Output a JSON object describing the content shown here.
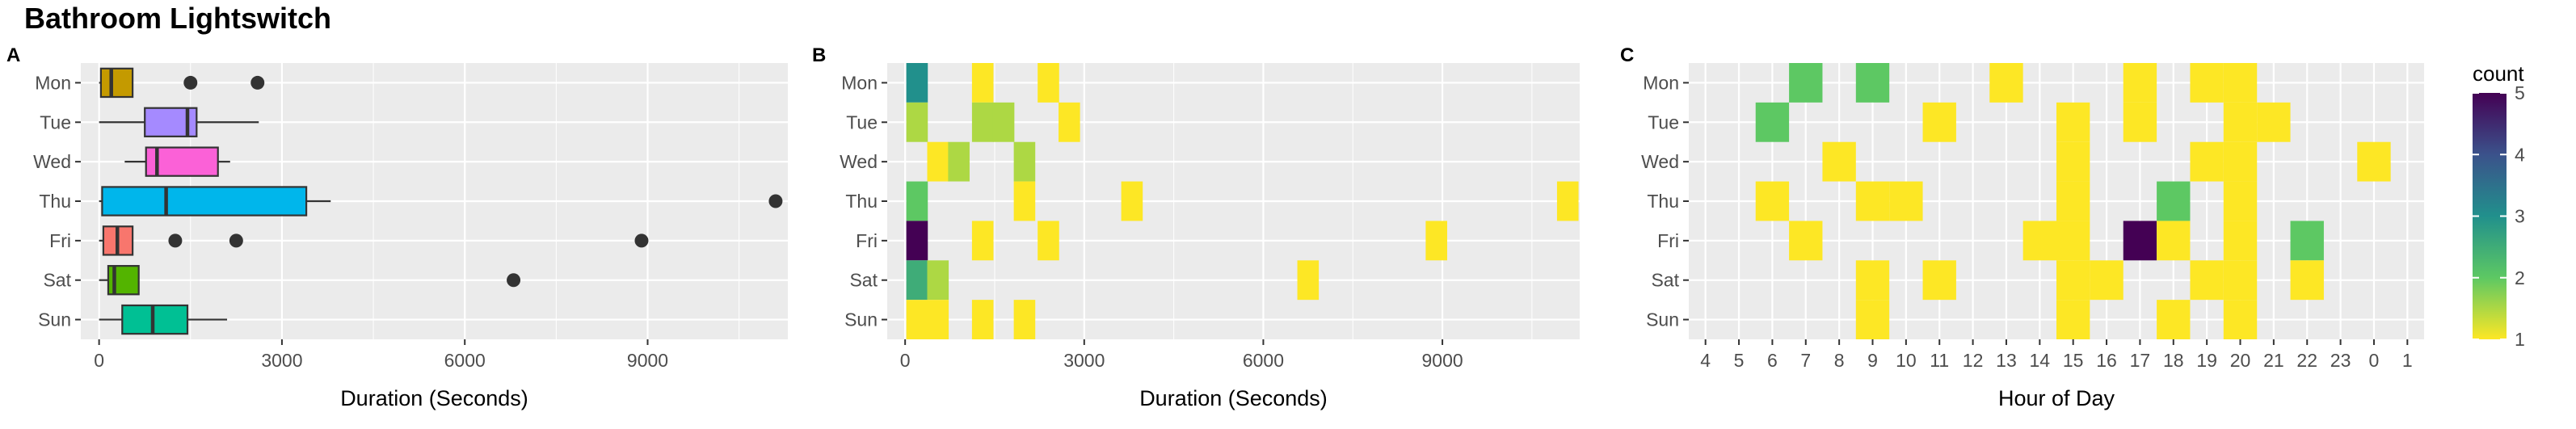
{
  "title": "Bathroom Lightswitch",
  "days": [
    "Mon",
    "Tue",
    "Wed",
    "Thu",
    "Fri",
    "Sat",
    "Sun"
  ],
  "chart_data": [
    {
      "panel": "A",
      "type": "box",
      "xlabel": "Duration (Seconds)",
      "ylabel": "",
      "xlim": [
        -300,
        11300
      ],
      "x_ticks": [
        0,
        3000,
        6000,
        9000
      ],
      "categories": [
        "Mon",
        "Tue",
        "Wed",
        "Thu",
        "Fri",
        "Sat",
        "Sun"
      ],
      "boxes": [
        {
          "day": "Mon",
          "min": 0,
          "q1": 30,
          "median": 200,
          "q3": 550,
          "max": 560,
          "outliers": [
            1500,
            2600
          ],
          "color": "#C49A00"
        },
        {
          "day": "Tue",
          "min": 0,
          "q1": 750,
          "median": 1450,
          "q3": 1600,
          "max": 2620,
          "outliers": [],
          "color": "#A58AFF"
        },
        {
          "day": "Wed",
          "min": 420,
          "q1": 770,
          "median": 950,
          "q3": 1950,
          "max": 2150,
          "outliers": [],
          "color": "#FB61D7"
        },
        {
          "day": "Thu",
          "min": 0,
          "q1": 50,
          "median": 1100,
          "q3": 3400,
          "max": 3800,
          "outliers": [
            11100
          ],
          "color": "#00B6EB"
        },
        {
          "day": "Fri",
          "min": 0,
          "q1": 70,
          "median": 300,
          "q3": 550,
          "max": 560,
          "outliers": [
            1250,
            2250,
            8900
          ],
          "color": "#F8766D"
        },
        {
          "day": "Sat",
          "min": 0,
          "q1": 150,
          "median": 250,
          "q3": 650,
          "max": 660,
          "outliers": [
            6800
          ],
          "color": "#53B400"
        },
        {
          "day": "Sun",
          "min": 0,
          "q1": 380,
          "median": 880,
          "q3": 1450,
          "max": 2100,
          "outliers": [],
          "color": "#00C094"
        }
      ]
    },
    {
      "panel": "B",
      "type": "heatmap",
      "xlabel": "Duration (Seconds)",
      "ylabel": "",
      "xlim": [
        -300,
        11300
      ],
      "x_ticks": [
        0,
        3000,
        6000,
        9000
      ],
      "bin_width": 360,
      "categories": [
        "Mon",
        "Tue",
        "Wed",
        "Thu",
        "Fri",
        "Sat",
        "Sun"
      ],
      "cells": [
        {
          "day": "Mon",
          "x": 200,
          "count": 3
        },
        {
          "day": "Mon",
          "x": 1300,
          "count": 1
        },
        {
          "day": "Mon",
          "x": 2400,
          "count": 1
        },
        {
          "day": "Tue",
          "x": 200,
          "count": 1.5
        },
        {
          "day": "Tue",
          "x": 1300,
          "count": 1.5
        },
        {
          "day": "Tue",
          "x": 1650,
          "count": 1.5
        },
        {
          "day": "Tue",
          "x": 2750,
          "count": 1
        },
        {
          "day": "Wed",
          "x": 550,
          "count": 1
        },
        {
          "day": "Wed",
          "x": 900,
          "count": 1.5
        },
        {
          "day": "Wed",
          "x": 2000,
          "count": 1.5
        },
        {
          "day": "Thu",
          "x": 200,
          "count": 2
        },
        {
          "day": "Thu",
          "x": 2000,
          "count": 1
        },
        {
          "day": "Thu",
          "x": 3800,
          "count": 1
        },
        {
          "day": "Thu",
          "x": 11100,
          "count": 1
        },
        {
          "day": "Fri",
          "x": 200,
          "count": 5
        },
        {
          "day": "Fri",
          "x": 1300,
          "count": 1
        },
        {
          "day": "Fri",
          "x": 2400,
          "count": 1
        },
        {
          "day": "Fri",
          "x": 8900,
          "count": 1
        },
        {
          "day": "Sat",
          "x": 200,
          "count": 2.5
        },
        {
          "day": "Sat",
          "x": 550,
          "count": 1.5
        },
        {
          "day": "Sat",
          "x": 6750,
          "count": 1
        },
        {
          "day": "Sun",
          "x": 200,
          "count": 1
        },
        {
          "day": "Sun",
          "x": 550,
          "count": 1
        },
        {
          "day": "Sun",
          "x": 1300,
          "count": 1
        },
        {
          "day": "Sun",
          "x": 2000,
          "count": 1
        }
      ]
    },
    {
      "panel": "C",
      "type": "heatmap",
      "xlabel": "Hour of Day",
      "ylabel": "",
      "x_categories": [
        "4",
        "5",
        "6",
        "7",
        "8",
        "9",
        "10",
        "11",
        "12",
        "13",
        "14",
        "15",
        "16",
        "17",
        "18",
        "19",
        "20",
        "21",
        "22",
        "23",
        "0",
        "1"
      ],
      "categories": [
        "Mon",
        "Tue",
        "Wed",
        "Thu",
        "Fri",
        "Sat",
        "Sun"
      ],
      "cells": [
        {
          "day": "Mon",
          "hour": "7",
          "count": 2
        },
        {
          "day": "Mon",
          "hour": "9",
          "count": 2
        },
        {
          "day": "Mon",
          "hour": "13",
          "count": 1
        },
        {
          "day": "Mon",
          "hour": "17",
          "count": 1
        },
        {
          "day": "Mon",
          "hour": "19",
          "count": 1
        },
        {
          "day": "Mon",
          "hour": "20",
          "count": 1
        },
        {
          "day": "Tue",
          "hour": "6",
          "count": 2
        },
        {
          "day": "Tue",
          "hour": "11",
          "count": 1
        },
        {
          "day": "Tue",
          "hour": "15",
          "count": 1
        },
        {
          "day": "Tue",
          "hour": "17",
          "count": 1
        },
        {
          "day": "Tue",
          "hour": "20",
          "count": 1
        },
        {
          "day": "Tue",
          "hour": "21",
          "count": 1
        },
        {
          "day": "Wed",
          "hour": "8",
          "count": 1
        },
        {
          "day": "Wed",
          "hour": "15",
          "count": 1
        },
        {
          "day": "Wed",
          "hour": "19",
          "count": 1
        },
        {
          "day": "Wed",
          "hour": "20",
          "count": 1
        },
        {
          "day": "Wed",
          "hour": "0",
          "count": 1
        },
        {
          "day": "Thu",
          "hour": "6",
          "count": 1
        },
        {
          "day": "Thu",
          "hour": "9",
          "count": 1
        },
        {
          "day": "Thu",
          "hour": "10",
          "count": 1
        },
        {
          "day": "Thu",
          "hour": "15",
          "count": 1
        },
        {
          "day": "Thu",
          "hour": "18",
          "count": 2
        },
        {
          "day": "Thu",
          "hour": "20",
          "count": 1
        },
        {
          "day": "Fri",
          "hour": "7",
          "count": 1
        },
        {
          "day": "Fri",
          "hour": "14",
          "count": 1
        },
        {
          "day": "Fri",
          "hour": "15",
          "count": 1
        },
        {
          "day": "Fri",
          "hour": "17",
          "count": 5
        },
        {
          "day": "Fri",
          "hour": "18",
          "count": 1
        },
        {
          "day": "Fri",
          "hour": "20",
          "count": 1
        },
        {
          "day": "Fri",
          "hour": "22",
          "count": 2
        },
        {
          "day": "Sat",
          "hour": "9",
          "count": 1
        },
        {
          "day": "Sat",
          "hour": "11",
          "count": 1
        },
        {
          "day": "Sat",
          "hour": "15",
          "count": 1
        },
        {
          "day": "Sat",
          "hour": "16",
          "count": 1
        },
        {
          "day": "Sat",
          "hour": "19",
          "count": 1
        },
        {
          "day": "Sat",
          "hour": "20",
          "count": 1
        },
        {
          "day": "Sat",
          "hour": "22",
          "count": 1
        },
        {
          "day": "Sun",
          "hour": "9",
          "count": 1
        },
        {
          "day": "Sun",
          "hour": "15",
          "count": 1
        },
        {
          "day": "Sun",
          "hour": "18",
          "count": 1
        },
        {
          "day": "Sun",
          "hour": "20",
          "count": 1
        }
      ]
    }
  ],
  "legend": {
    "title": "count",
    "ticks": [
      1,
      2,
      3,
      4,
      5
    ],
    "range": [
      1,
      5
    ],
    "colors": [
      "#FDE725",
      "#5DC863",
      "#21908C",
      "#3B528B",
      "#440154"
    ]
  },
  "panel_bg": "#EBEBEB"
}
